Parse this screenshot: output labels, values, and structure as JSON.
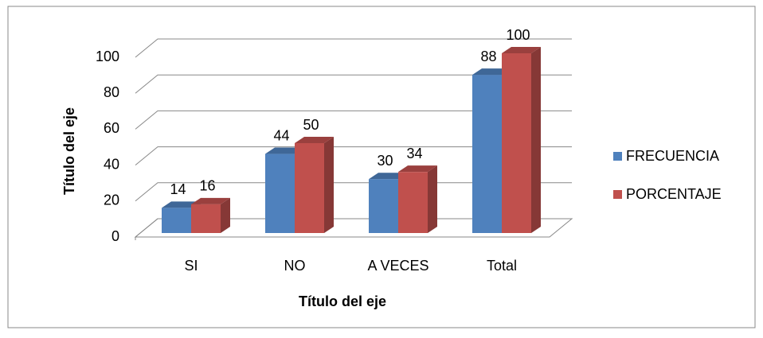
{
  "chart_data": {
    "type": "bar3d",
    "xlabel": "Título del eje",
    "ylabel": "Título del eje",
    "categories": [
      "SI",
      "NO",
      "A VECES",
      "Total"
    ],
    "series": [
      {
        "name": "FRECUENCIA",
        "color": "#4f81bd",
        "values": [
          14,
          44,
          30,
          88
        ]
      },
      {
        "name": "PORCENTAJE",
        "color": "#c0504d",
        "values": [
          16,
          50,
          34,
          100
        ]
      }
    ],
    "ylim": [
      0,
      100
    ],
    "yticks": [
      0,
      20,
      40,
      60,
      80,
      100
    ],
    "grid": true,
    "legend": "right"
  }
}
